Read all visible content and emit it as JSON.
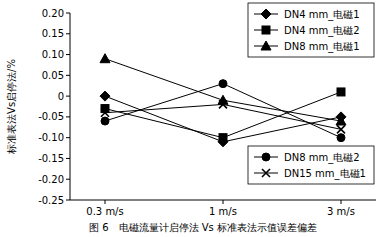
{
  "chart_data": {
    "type": "line",
    "title": "图 6　电磁流量计启停法 Vs 标准表法示值误差偏差",
    "y_label": "标准表法Vs启停法/%",
    "categories": [
      "0.3 m/s",
      "1 m/s",
      "3 m/s"
    ],
    "series": [
      {
        "name": "DN4 mm_电磁1",
        "color": "#000000",
        "marker": "diamond",
        "values": [
          0.0,
          -0.11,
          -0.05
        ]
      },
      {
        "name": "DN4 mm_电磁2",
        "color": "#000000",
        "marker": "square",
        "values": [
          -0.03,
          -0.1,
          0.01
        ]
      },
      {
        "name": "DN8 mm_电磁1",
        "color": "#000000",
        "marker": "triangle",
        "values": [
          0.09,
          -0.01,
          -0.06
        ]
      },
      {
        "name": "DN8 mm_电磁2",
        "color": "#000000",
        "marker": "circle",
        "values": [
          -0.06,
          0.03,
          -0.1
        ]
      },
      {
        "name": "DN15 mm_电磁1",
        "color": "#000000",
        "marker": "x",
        "values": [
          -0.04,
          -0.02,
          -0.08
        ]
      }
    ],
    "ylim": [
      -0.25,
      0.2
    ],
    "yticks": [
      {
        "value": 0.2,
        "label": "0.20"
      },
      0.15,
      {
        "value": 0.1,
        "label": "0.10"
      },
      0.05,
      0,
      -0.05,
      {
        "value": -0.1,
        "label": "-0.10"
      },
      -0.15,
      {
        "value": -0.2,
        "label": "-0.20"
      },
      -0.25
    ],
    "legend": "upper right",
    "grid": false
  }
}
